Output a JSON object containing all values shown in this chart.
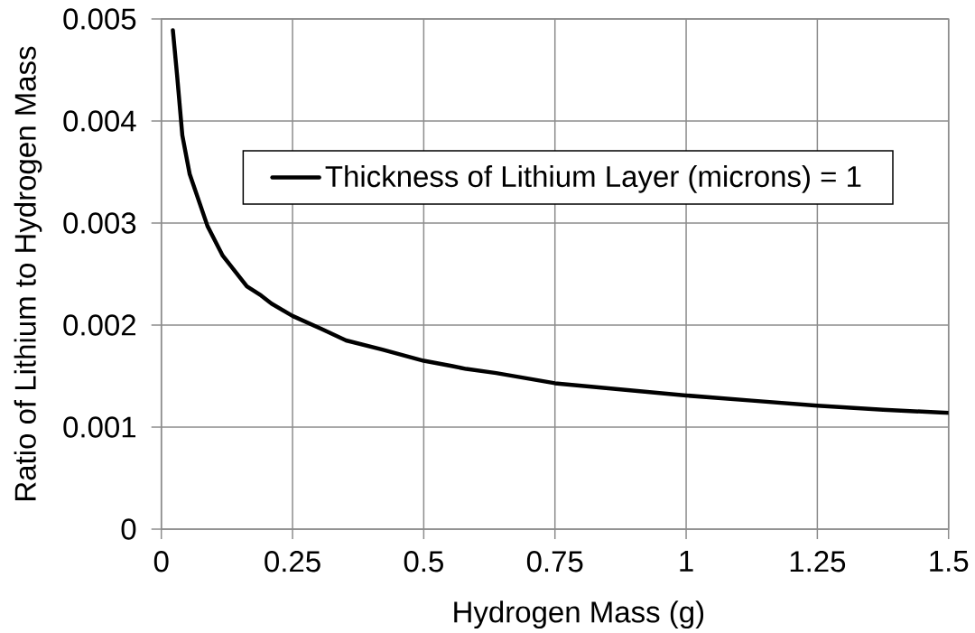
{
  "chart_data": {
    "type": "line",
    "xlabel": "Hydrogen Mass (g)",
    "ylabel": "Ratio of Lithium to Hydrogen Mass",
    "x": [
      0.022,
      0.03,
      0.04,
      0.054,
      0.088,
      0.117,
      0.14,
      0.163,
      0.19,
      0.21,
      0.25,
      0.306,
      0.352,
      0.421,
      0.5,
      0.553,
      0.581,
      0.638,
      0.75,
      0.875,
      1.0,
      1.125,
      1.25,
      1.375,
      1.5
    ],
    "series": [
      {
        "name": "Thickness of Lithium Layer (microns) = 1",
        "color": "#000000",
        "values": [
          0.00489,
          0.00445,
          0.00386,
          0.00348,
          0.00297,
          0.00268,
          0.00253,
          0.00238,
          0.00229,
          0.00221,
          0.00209,
          0.00196,
          0.00185,
          0.00176,
          0.00165,
          0.0016,
          0.00157,
          0.00153,
          0.00143,
          0.00137,
          0.00131,
          0.00126,
          0.00121,
          0.00117,
          0.00114
        ]
      }
    ],
    "xlim": [
      0,
      1.5
    ],
    "ylim": [
      0,
      0.005
    ],
    "xticks": [
      0,
      0.25,
      0.5,
      0.75,
      1,
      1.25,
      1.5
    ],
    "yticks": [
      0,
      0.001,
      0.002,
      0.003,
      0.004,
      0.005
    ],
    "grid": true,
    "legend": "top",
    "marker": "none",
    "line_style": "solid"
  }
}
